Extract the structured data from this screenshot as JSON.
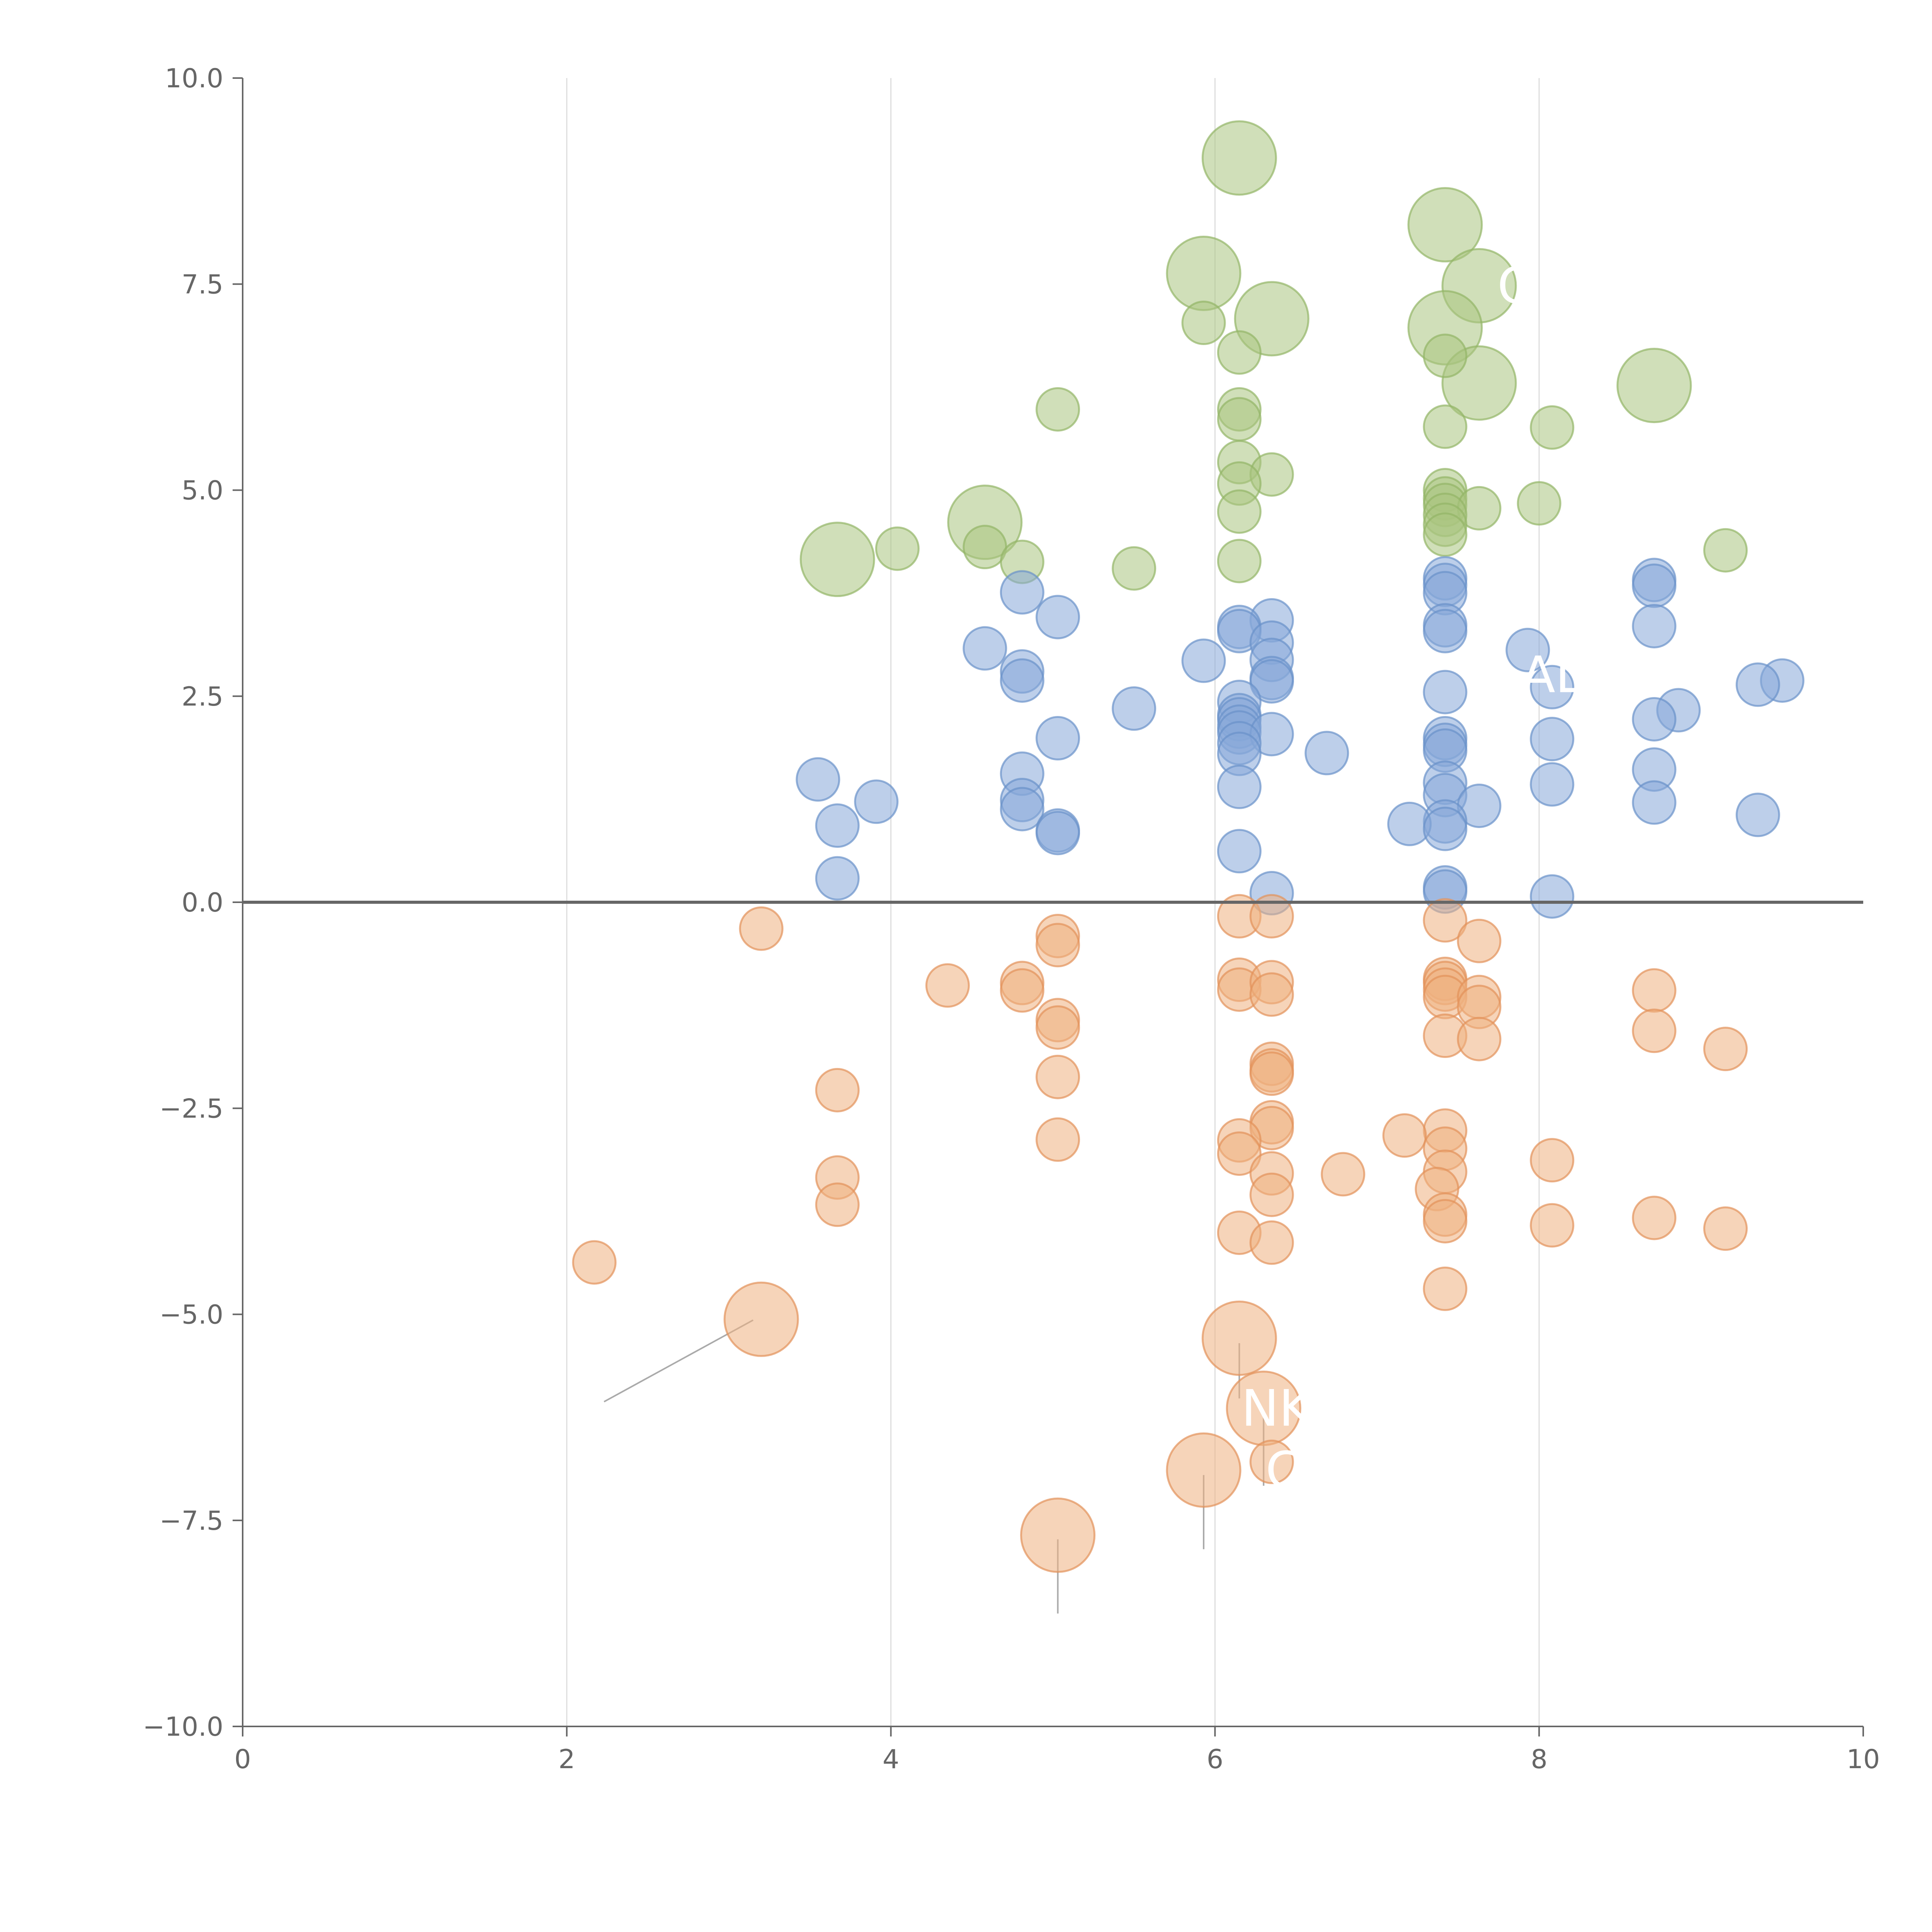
{
  "chart_data": {
    "type": "scatter",
    "title": "",
    "xlabel": "",
    "ylabel": "",
    "xlim": [
      0,
      10
    ],
    "ylim": [
      -10,
      10
    ],
    "x_ticks": [
      0,
      2,
      4,
      6,
      8,
      10
    ],
    "y_ticks": [
      -10,
      -7.5,
      -5,
      -2.5,
      0,
      2.5,
      5,
      7.5,
      10
    ],
    "x_tick_labels": [
      "0",
      "2",
      "4",
      "6",
      "8",
      "10"
    ],
    "y_tick_labels": [
      "−10.0",
      "−7.5",
      "−5.0",
      "−2.5",
      "0.0",
      "2.5",
      "5.0",
      "7.5",
      "10.0"
    ],
    "grid": {
      "vertical": true,
      "horizontal": false
    },
    "zero_line": true,
    "legend": "none",
    "series": [
      {
        "color": "#a9c57f",
        "stroke": "#93b567",
        "points": [
          [
            6.15,
            9.03,
            1
          ],
          [
            7.42,
            8.22,
            1
          ],
          [
            5.93,
            7.63,
            1
          ],
          [
            7.63,
            7.48,
            1
          ],
          [
            6.35,
            7.08,
            1
          ],
          [
            7.42,
            6.97,
            1
          ],
          [
            7.63,
            6.3,
            1
          ],
          [
            8.71,
            6.27,
            1
          ],
          [
            3.67,
            4.16,
            1
          ],
          [
            4.58,
            4.61,
            1
          ],
          [
            5.93,
            7.03,
            0
          ],
          [
            6.15,
            6.67,
            0
          ],
          [
            7.42,
            6.63,
            0
          ],
          [
            5.03,
            5.98,
            0
          ],
          [
            6.15,
            5.98,
            0
          ],
          [
            6.15,
            5.86,
            0
          ],
          [
            7.42,
            5.77,
            0
          ],
          [
            8.08,
            5.76,
            0
          ],
          [
            6.15,
            5.34,
            0
          ],
          [
            6.35,
            5.19,
            0
          ],
          [
            6.15,
            5.08,
            0
          ],
          [
            7.42,
            5.0,
            0
          ],
          [
            7.42,
            4.9,
            0
          ],
          [
            7.42,
            4.82,
            0
          ],
          [
            7.63,
            4.78,
            0
          ],
          [
            8.0,
            4.84,
            0
          ],
          [
            6.15,
            4.74,
            0
          ],
          [
            7.42,
            4.7,
            0
          ],
          [
            7.42,
            4.58,
            0
          ],
          [
            7.42,
            4.46,
            0
          ],
          [
            4.04,
            4.29,
            0
          ],
          [
            4.58,
            4.31,
            0
          ],
          [
            9.15,
            4.27,
            0
          ],
          [
            4.81,
            4.13,
            0
          ],
          [
            6.15,
            4.14,
            0
          ],
          [
            5.5,
            4.05,
            0
          ]
        ]
      },
      {
        "color": "#86a8d8",
        "stroke": "#6a91c9",
        "points": [
          [
            7.42,
            3.93,
            0
          ],
          [
            8.71,
            3.91,
            0
          ],
          [
            7.42,
            3.85,
            0
          ],
          [
            8.71,
            3.84,
            0
          ],
          [
            7.42,
            3.75,
            0
          ],
          [
            4.81,
            3.76,
            0
          ],
          [
            5.03,
            3.46,
            0
          ],
          [
            6.35,
            3.42,
            0
          ],
          [
            6.15,
            3.34,
            0
          ],
          [
            7.42,
            3.36,
            0
          ],
          [
            8.71,
            3.35,
            0
          ],
          [
            6.15,
            3.29,
            0
          ],
          [
            7.42,
            3.29,
            0
          ],
          [
            6.35,
            3.15,
            0
          ],
          [
            4.58,
            3.08,
            0
          ],
          [
            7.93,
            3.06,
            0
          ],
          [
            6.35,
            2.94,
            0
          ],
          [
            5.93,
            2.93,
            0
          ],
          [
            4.81,
            2.8,
            0
          ],
          [
            6.35,
            2.72,
            0
          ],
          [
            6.35,
            2.68,
            0
          ],
          [
            4.81,
            2.69,
            0
          ],
          [
            9.5,
            2.69,
            0
          ],
          [
            9.35,
            2.64,
            0
          ],
          [
            8.08,
            2.61,
            0
          ],
          [
            7.42,
            2.55,
            0
          ],
          [
            6.15,
            2.43,
            0
          ],
          [
            5.5,
            2.35,
            0
          ],
          [
            8.86,
            2.33,
            0
          ],
          [
            6.15,
            2.27,
            0
          ],
          [
            6.15,
            2.22,
            0
          ],
          [
            8.71,
            2.22,
            0
          ],
          [
            6.15,
            2.13,
            0
          ],
          [
            6.15,
            2.06,
            0
          ],
          [
            6.35,
            2.04,
            0
          ],
          [
            5.03,
            1.99,
            0
          ],
          [
            7.42,
            1.99,
            0
          ],
          [
            8.08,
            1.98,
            0
          ],
          [
            7.42,
            1.91,
            0
          ],
          [
            6.15,
            1.93,
            0
          ],
          [
            7.42,
            1.84,
            0
          ],
          [
            6.15,
            1.8,
            0
          ],
          [
            6.69,
            1.81,
            0
          ],
          [
            8.71,
            1.61,
            0
          ],
          [
            4.81,
            1.56,
            0
          ],
          [
            3.55,
            1.49,
            0
          ],
          [
            7.42,
            1.45,
            0
          ],
          [
            8.08,
            1.43,
            0
          ],
          [
            6.15,
            1.4,
            0
          ],
          [
            7.42,
            1.3,
            0
          ],
          [
            4.81,
            1.24,
            0
          ],
          [
            3.91,
            1.22,
            0
          ],
          [
            8.71,
            1.21,
            0
          ],
          [
            7.63,
            1.17,
            0
          ],
          [
            4.81,
            1.13,
            0
          ],
          [
            9.35,
            1.06,
            0
          ],
          [
            7.42,
            0.98,
            0
          ],
          [
            7.2,
            0.95,
            0
          ],
          [
            3.67,
            0.93,
            0
          ],
          [
            7.42,
            0.89,
            0
          ],
          [
            5.03,
            0.87,
            0
          ],
          [
            5.03,
            0.84,
            0
          ],
          [
            6.15,
            0.62,
            0
          ],
          [
            3.67,
            0.29,
            0
          ],
          [
            7.42,
            0.18,
            0
          ],
          [
            7.42,
            0.13,
            0
          ],
          [
            6.35,
            0.11,
            0
          ],
          [
            8.08,
            0.07,
            0
          ]
        ]
      },
      {
        "color": "#eeb080",
        "stroke": "#e2925a",
        "points": [
          [
            6.15,
            -5.29,
            1
          ],
          [
            3.2,
            -5.06,
            1
          ],
          [
            6.3,
            -6.14,
            1
          ],
          [
            5.93,
            -6.89,
            1
          ],
          [
            5.03,
            -7.68,
            1
          ],
          [
            3.2,
            -0.32,
            0
          ],
          [
            5.03,
            -0.41,
            0
          ],
          [
            5.03,
            -0.52,
            0
          ],
          [
            6.15,
            -0.17,
            0
          ],
          [
            6.35,
            -0.17,
            0
          ],
          [
            7.42,
            -0.22,
            0
          ],
          [
            7.63,
            -0.47,
            0
          ],
          [
            4.35,
            -1.01,
            0
          ],
          [
            4.81,
            -0.98,
            0
          ],
          [
            4.81,
            -1.07,
            0
          ],
          [
            6.15,
            -0.94,
            0
          ],
          [
            6.15,
            -1.06,
            0
          ],
          [
            6.35,
            -0.97,
            0
          ],
          [
            6.35,
            -1.12,
            0
          ],
          [
            7.42,
            -0.93,
            0
          ],
          [
            7.42,
            -0.98,
            0
          ],
          [
            7.42,
            -1.06,
            0
          ],
          [
            7.42,
            -1.15,
            0
          ],
          [
            7.63,
            -1.15,
            0
          ],
          [
            7.63,
            -1.27,
            0
          ],
          [
            8.71,
            -1.07,
            0
          ],
          [
            5.03,
            -1.43,
            0
          ],
          [
            5.03,
            -1.52,
            0
          ],
          [
            7.42,
            -1.62,
            0
          ],
          [
            7.63,
            -1.66,
            0
          ],
          [
            8.71,
            -1.56,
            0
          ],
          [
            9.15,
            -1.78,
            0
          ],
          [
            6.35,
            -1.96,
            0
          ],
          [
            6.35,
            -2.04,
            0
          ],
          [
            6.35,
            -2.08,
            0
          ],
          [
            5.03,
            -2.12,
            0
          ],
          [
            3.67,
            -2.28,
            0
          ],
          [
            6.35,
            -2.67,
            0
          ],
          [
            6.35,
            -2.74,
            0
          ],
          [
            7.42,
            -2.77,
            0
          ],
          [
            7.17,
            -2.83,
            0
          ],
          [
            5.03,
            -2.88,
            0
          ],
          [
            6.15,
            -2.89,
            0
          ],
          [
            7.42,
            -2.99,
            0
          ],
          [
            6.15,
            -3.05,
            0
          ],
          [
            8.08,
            -3.13,
            0
          ],
          [
            6.35,
            -3.29,
            0
          ],
          [
            6.79,
            -3.3,
            0
          ],
          [
            7.42,
            -3.27,
            0
          ],
          [
            3.67,
            -3.34,
            0
          ],
          [
            7.37,
            -3.48,
            0
          ],
          [
            6.35,
            -3.55,
            0
          ],
          [
            3.67,
            -3.67,
            0
          ],
          [
            7.42,
            -3.79,
            0
          ],
          [
            7.42,
            -3.87,
            0
          ],
          [
            8.71,
            -3.83,
            0
          ],
          [
            8.08,
            -3.92,
            0
          ],
          [
            9.15,
            -3.96,
            0
          ],
          [
            6.15,
            -4.01,
            0
          ],
          [
            6.35,
            -4.13,
            0
          ],
          [
            2.17,
            -4.37,
            0
          ],
          [
            7.42,
            -4.69,
            0
          ],
          [
            6.35,
            -6.79,
            0
          ]
        ]
      }
    ],
    "leader_lines": [
      [
        3.15,
        -5.07,
        2.23,
        -6.06
      ],
      [
        6.15,
        -5.35,
        6.15,
        -6.02
      ],
      [
        6.3,
        -6.18,
        6.3,
        -7.08
      ],
      [
        5.93,
        -6.95,
        5.93,
        -7.85
      ],
      [
        5.03,
        -7.73,
        5.03,
        -8.63
      ],
      [
        6.18,
        9.0,
        6.3,
        9.05
      ],
      [
        7.45,
        8.2,
        7.6,
        8.4
      ],
      [
        7.58,
        7.48,
        7.7,
        7.48
      ],
      [
        6.4,
        7.08,
        6.55,
        7.15
      ],
      [
        7.47,
        6.92,
        7.65,
        6.8
      ],
      [
        7.63,
        6.25,
        7.63,
        6.0
      ],
      [
        8.75,
        6.27,
        9.0,
        6.55
      ],
      [
        8.71,
        6.12,
        8.4,
        6.3
      ],
      [
        3.67,
        4.22,
        3.8,
        4.55
      ],
      [
        4.63,
        4.61,
        4.75,
        4.75
      ],
      [
        5.88,
        7.63,
        5.75,
        7.55
      ]
    ],
    "point_labels": [
      {
        "text": "NK",
        "x": 6.38,
        "y": -6.14
      },
      {
        "text": "C",
        "x": 6.42,
        "y": -6.89
      },
      {
        "text": "AL",
        "x": 8.08,
        "y": 2.76
      },
      {
        "text": "C",
        "x": 7.85,
        "y": 7.48
      }
    ]
  }
}
